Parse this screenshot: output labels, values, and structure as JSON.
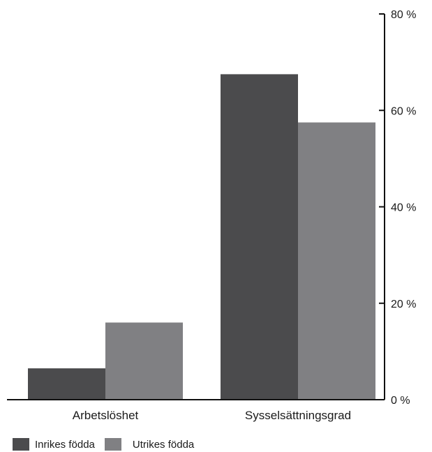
{
  "chart_data": {
    "type": "bar",
    "categories": [
      "Arbetslöshet",
      "Sysselsättningsgrad"
    ],
    "series": [
      {
        "name": "Inrikes födda",
        "values": [
          6.5,
          67.5
        ],
        "color": "#4b4b4d"
      },
      {
        "name": "Utrikes födda",
        "values": [
          16,
          57.5
        ],
        "color": "#808083"
      }
    ],
    "ylim": [
      0,
      80
    ],
    "yticks": [
      0,
      20,
      40,
      60,
      80
    ],
    "ytick_labels": [
      "0 %",
      "20 %",
      "40 %",
      "60 %",
      "80 %"
    ],
    "y_axis_side": "right",
    "grid": false,
    "legend_position": "bottom-left",
    "title": "",
    "xlabel": "",
    "ylabel": ""
  }
}
